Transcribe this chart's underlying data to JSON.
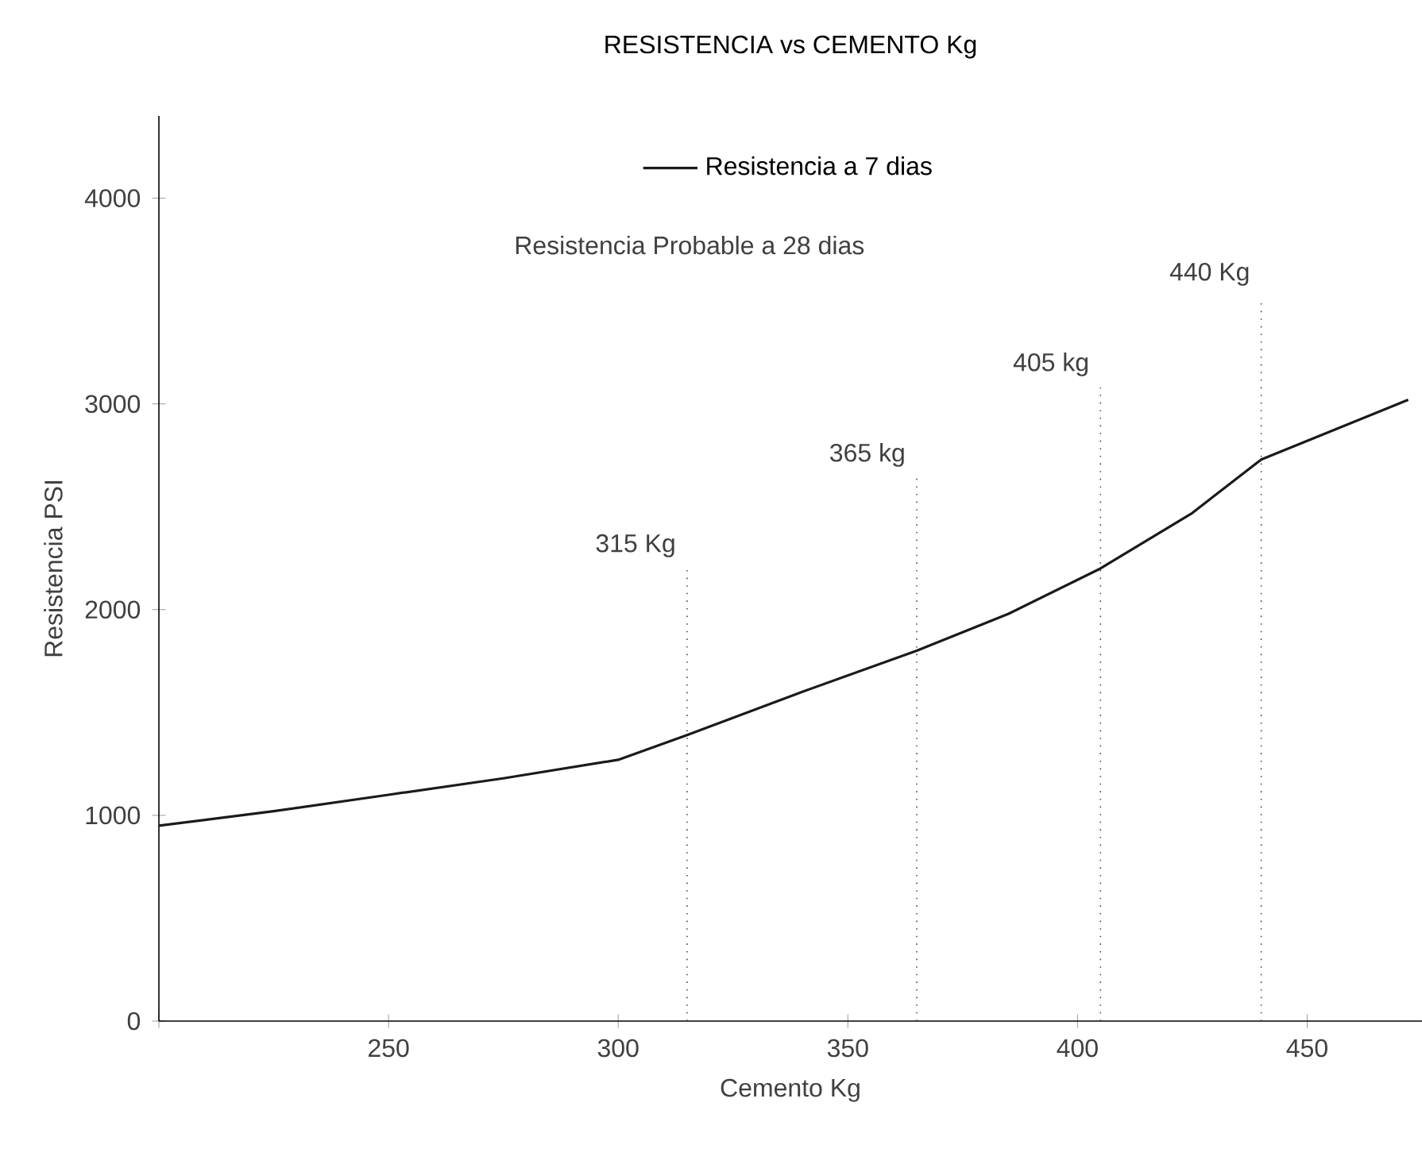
{
  "chart_data": {
    "type": "line",
    "title": "RESISTENCIA vs CEMENTO Kg",
    "xlabel": "Cemento   Kg",
    "ylabel": "Resistencia PSI",
    "x": [
      200,
      225,
      250,
      275,
      300,
      315,
      340,
      365,
      385,
      405,
      425,
      440,
      472
    ],
    "series": [
      {
        "name": "Resistencia a 7 dias",
        "color": "#1a1a1a",
        "values": [
          950,
          1020,
          1100,
          1180,
          1270,
          1390,
          1600,
          1800,
          1980,
          2200,
          2470,
          2730,
          3020
        ]
      }
    ],
    "xlim": [
      200,
      475
    ],
    "xticks": [
      {
        "value": 200,
        "label": null
      },
      250,
      300,
      350,
      400,
      450
    ],
    "ylim": [
      0,
      4400
    ],
    "yticks": [
      0,
      1000,
      2000,
      3000,
      4000
    ],
    "ref_lines": [
      {
        "axis": "x",
        "value": 315,
        "label": "315  Kg",
        "line_style": "dotted"
      },
      {
        "axis": "x",
        "value": 365,
        "label": "365  kg",
        "line_style": "dotted"
      },
      {
        "axis": "x",
        "value": 405,
        "label": "405  kg",
        "line_style": "dotted"
      },
      {
        "axis": "x",
        "value": 440,
        "label": "440  Kg",
        "line_style": "dotted"
      }
    ],
    "annotations": [
      "Resistencia Probable a 28 dias"
    ],
    "legend": "top",
    "grid": false,
    "marker": "none",
    "line_style": "solid"
  }
}
